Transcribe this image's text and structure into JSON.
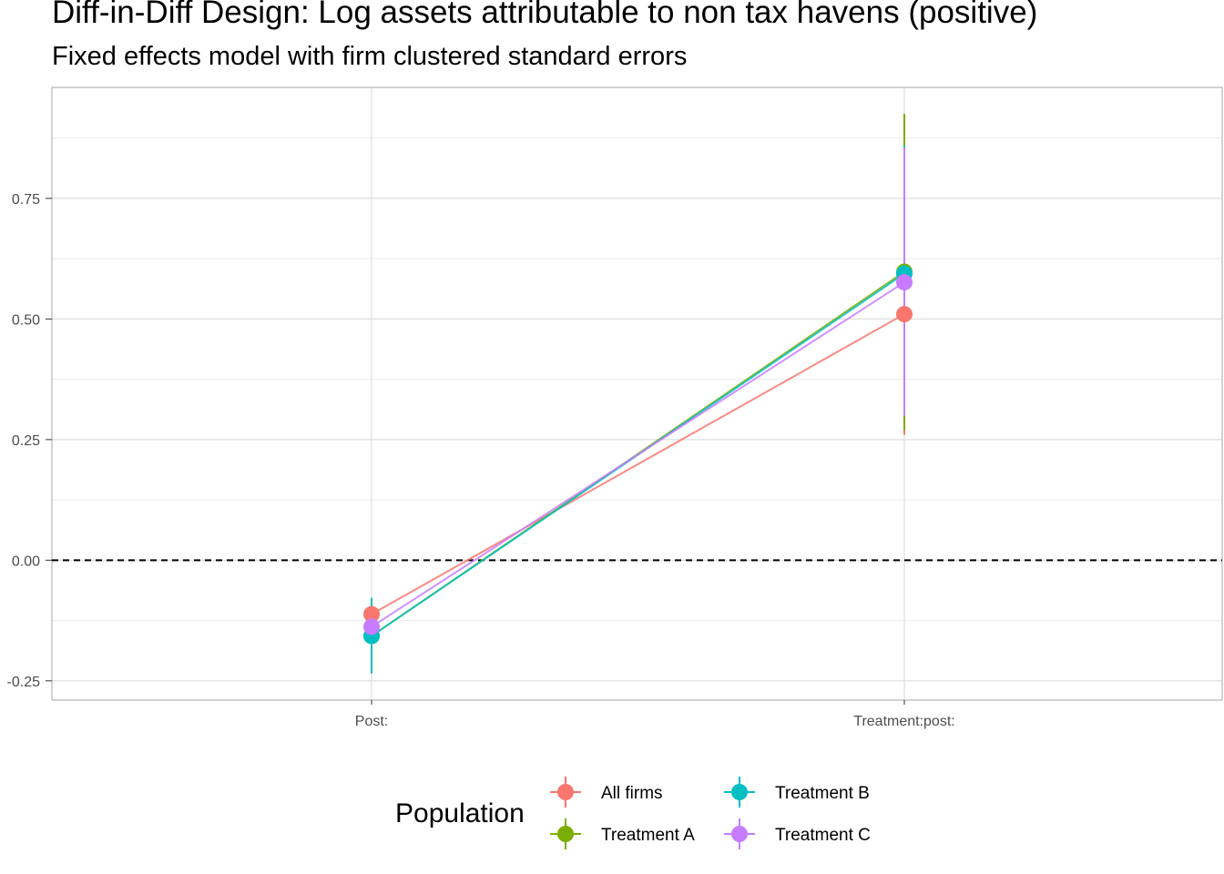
{
  "chart_data": {
    "type": "scatter",
    "title": "Diff-in-Diff Design: Log assets attributable to non tax havens (positive)",
    "subtitle": "Fixed effects model with firm clustered standard errors",
    "xlabel": "",
    "ylabel": "",
    "categories": [
      "Post:",
      "Treatment:post:"
    ],
    "ylim": [
      -0.29,
      0.98
    ],
    "y_ticks": [
      -0.25,
      0.0,
      0.25,
      0.5,
      0.75
    ],
    "y_tick_labels": [
      "-0.25",
      "0.00",
      "0.25",
      "0.50",
      "0.75"
    ],
    "reference_line": {
      "y": 0.0,
      "style": "dashed"
    },
    "grid": true,
    "legend": {
      "title": "Population",
      "position": "bottom",
      "ncol": 2
    },
    "series": [
      {
        "name": "All firms",
        "color": "#F8766D",
        "values": [
          -0.112,
          0.51
        ],
        "lower": [
          -0.14,
          0.26
        ],
        "upper": [
          -0.085,
          0.76
        ]
      },
      {
        "name": "Treatment A",
        "color": "#7CAE00",
        "values": [
          -0.157,
          0.598
        ],
        "lower": [
          -0.2,
          0.27
        ],
        "upper": [
          -0.115,
          0.925
        ]
      },
      {
        "name": "Treatment B",
        "color": "#00BFC4",
        "values": [
          -0.157,
          0.594
        ],
        "lower": [
          -0.235,
          0.3
        ],
        "upper": [
          -0.078,
          0.86
        ]
      },
      {
        "name": "Treatment C",
        "color": "#C77CFF",
        "values": [
          -0.138,
          0.576
        ],
        "lower": [
          -0.175,
          0.3
        ],
        "upper": [
          -0.1,
          0.855
        ]
      }
    ]
  }
}
